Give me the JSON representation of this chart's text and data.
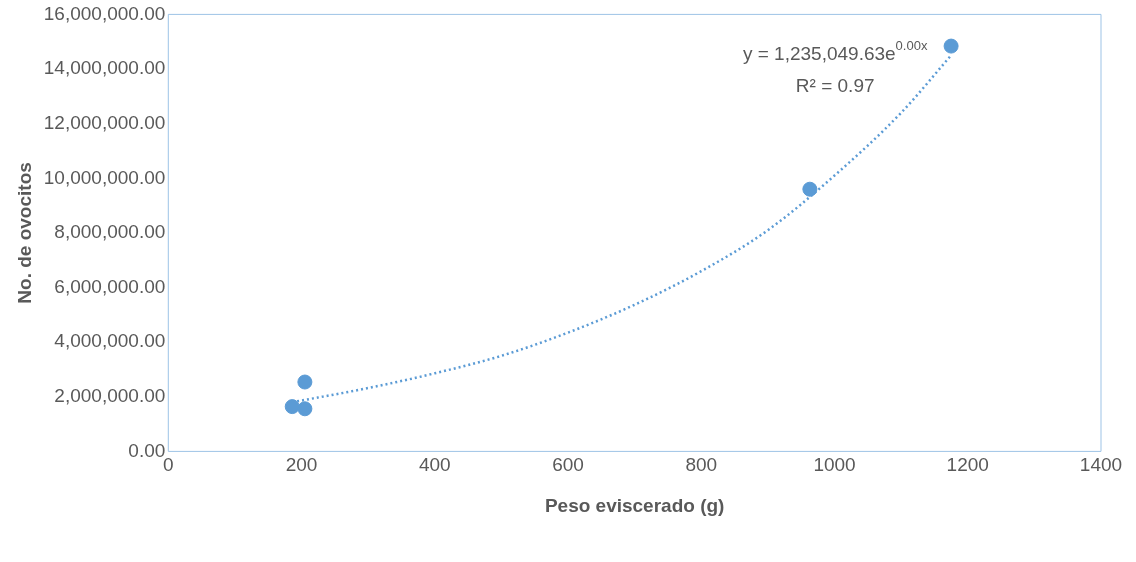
{
  "chart_data": {
    "type": "scatter",
    "xlabel": "Peso eviscerado (g)",
    "ylabel": "No. de ovocitos",
    "marker": "circle",
    "grid": false,
    "legend": false,
    "xlim": [
      0,
      1400
    ],
    "xticks": [
      0,
      200,
      400,
      600,
      800,
      1000,
      1200,
      1400
    ],
    "ylim": [
      0,
      16000000
    ],
    "yticks": [
      {
        "value": 0,
        "label": "0.00"
      },
      {
        "value": 2000000,
        "label": "2,000,000.00"
      },
      {
        "value": 4000000,
        "label": "4,000,000.00"
      },
      {
        "value": 6000000,
        "label": "6,000,000.00"
      },
      {
        "value": 8000000,
        "label": "8,000,000.00"
      },
      {
        "value": 10000000,
        "label": "10,000,000.00"
      },
      {
        "value": 12000000,
        "label": "12,000,000.00"
      },
      {
        "value": 14000000,
        "label": "14,000,000.00"
      },
      {
        "value": 16000000,
        "label": "16,000,000.00"
      }
    ],
    "series": [
      {
        "type": "scatter",
        "color": "#5b9bd5",
        "x": [
          186,
          205,
          205,
          963,
          1175
        ],
        "values": [
          1640000,
          2540000,
          1560000,
          9600000,
          14840000
        ]
      },
      {
        "type": "line",
        "color": "#5b9bd5",
        "line_style": "dotted",
        "marker": "none",
        "x": [
          186,
          300,
          400,
          500,
          600,
          700,
          800,
          900,
          1000,
          1100,
          1175
        ],
        "values": [
          1800000,
          2320000,
          2860000,
          3500000,
          4350000,
          5370000,
          6600000,
          8100000,
          10100000,
          12400000,
          14500000
        ]
      }
    ],
    "annotations": [
      "y = 1,235,049.63e$^{0.00x}$",
      "R² = 0.97"
    ]
  }
}
